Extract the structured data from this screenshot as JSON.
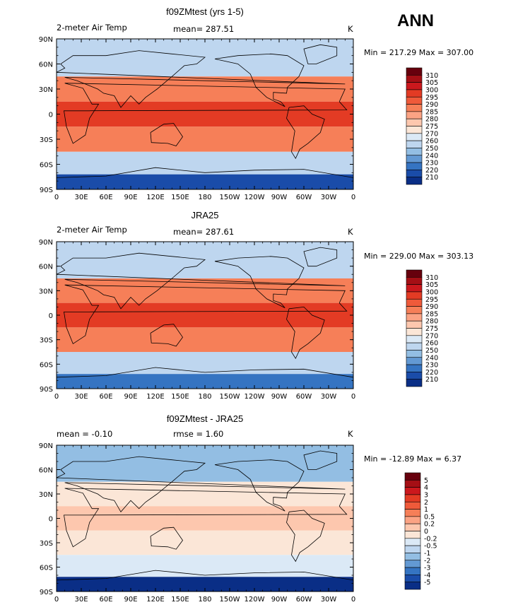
{
  "header": {
    "season": "ANN"
  },
  "chart_data": [
    {
      "type": "heatmap",
      "title": "f09ZMtest (yrs 1-5)",
      "left_label": "2-meter Air Temp",
      "center_label": "mean= 287.51",
      "units": "K",
      "minmax": "Min = 217.29 Max = 307.00",
      "xlabels": [
        "0",
        "30E",
        "60E",
        "90E",
        "120E",
        "150E",
        "180",
        "150W",
        "120W",
        "90W",
        "60W",
        "30W",
        "0"
      ],
      "ylabels": [
        "90N",
        "60N",
        "30N",
        "0",
        "30S",
        "60S",
        "90S"
      ],
      "colorbar_labels": [
        "310",
        "305",
        "300",
        "295",
        "290",
        "285",
        "280",
        "275",
        "270",
        "260",
        "250",
        "240",
        "230",
        "220",
        "210"
      ],
      "colorbar_colors": [
        "#67000d",
        "#a50f15",
        "#cb181d",
        "#e33b24",
        "#ef5a3a",
        "#f67f58",
        "#fba384",
        "#fdc7ae",
        "#fbe6d7",
        "#dbe9f6",
        "#bed6ef",
        "#93bee3",
        "#6399d3",
        "#3574c2",
        "#1a4ca9",
        "#0a2e86"
      ],
      "zone_colors": {
        "row_60N": "#bed6ef",
        "row_30N": "#f67f58",
        "row_0": "#e33b24",
        "row_30S": "#f67f58",
        "row_60S": "#bed6ef",
        "row_90S": "#1a4ca9"
      }
    },
    {
      "type": "heatmap",
      "title": "JRA25",
      "left_label": "2-meter Air Temp",
      "center_label": "mean= 287.61",
      "units": "K",
      "minmax": "Min = 229.00 Max = 303.13",
      "xlabels": [
        "0",
        "30E",
        "60E",
        "90E",
        "120E",
        "150E",
        "180",
        "150W",
        "120W",
        "90W",
        "60W",
        "30W",
        "0"
      ],
      "ylabels": [
        "90N",
        "60N",
        "30N",
        "0",
        "30S",
        "60S",
        "90S"
      ],
      "colorbar_labels": [
        "310",
        "305",
        "300",
        "295",
        "290",
        "285",
        "280",
        "275",
        "270",
        "260",
        "250",
        "240",
        "230",
        "220",
        "210"
      ],
      "colorbar_colors": [
        "#67000d",
        "#a50f15",
        "#cb181d",
        "#e33b24",
        "#ef5a3a",
        "#f67f58",
        "#fba384",
        "#fdc7ae",
        "#fbe6d7",
        "#dbe9f6",
        "#bed6ef",
        "#93bee3",
        "#6399d3",
        "#3574c2",
        "#1a4ca9",
        "#0a2e86"
      ],
      "zone_colors": {
        "row_60N": "#bed6ef",
        "row_30N": "#f67f58",
        "row_0": "#e33b24",
        "row_30S": "#f67f58",
        "row_60S": "#bed6ef",
        "row_90S": "#3574c2"
      }
    },
    {
      "type": "heatmap",
      "title": "f09ZMtest - JRA25",
      "left_label": "mean =   -0.10",
      "center_label": "rmse =    1.60",
      "units": "K",
      "minmax": "Min = -12.89 Max =    6.37",
      "xlabels": [
        "0",
        "30E",
        "60E",
        "90E",
        "120E",
        "150E",
        "180",
        "150W",
        "120W",
        "90W",
        "60W",
        "30W",
        "0"
      ],
      "ylabels": [
        "90N",
        "60N",
        "30N",
        "0",
        "30S",
        "60S",
        "90S"
      ],
      "colorbar_labels": [
        "5",
        "4",
        "3",
        "2",
        "1",
        "0.5",
        "0.2",
        "0",
        "-0.2",
        "-0.5",
        "-1",
        "-2",
        "-3",
        "-4",
        "-5"
      ],
      "colorbar_colors": [
        "#67000d",
        "#a50f15",
        "#cb181d",
        "#e33b24",
        "#ef5a3a",
        "#f67f58",
        "#fba384",
        "#fdc7ae",
        "#fbe6d7",
        "#dbe9f6",
        "#bed6ef",
        "#93bee3",
        "#6399d3",
        "#3574c2",
        "#1a4ca9",
        "#0a2e86"
      ],
      "zone_colors": {
        "row_60N": "#93bee3",
        "row_30N": "#fbe6d7",
        "row_0": "#fdc7ae",
        "row_30S": "#fbe6d7",
        "row_60S": "#dbe9f6",
        "row_90S": "#0a2e86"
      }
    }
  ]
}
